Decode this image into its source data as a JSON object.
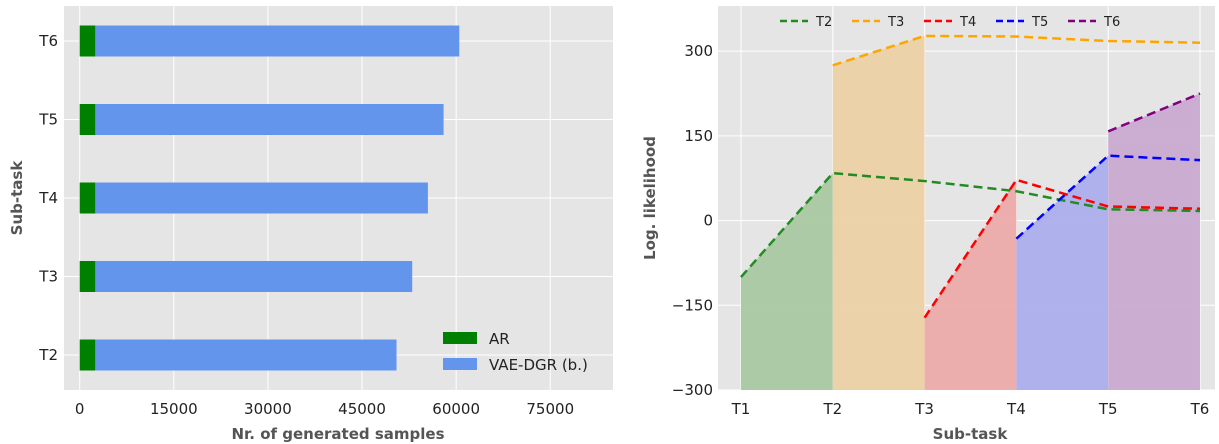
{
  "chart_data": [
    {
      "type": "bar",
      "orientation": "horizontal",
      "stacked": true,
      "categories": [
        "T2",
        "T3",
        "T4",
        "T5",
        "T6"
      ],
      "series": [
        {
          "name": "AR",
          "color": "#008000",
          "values": [
            2500,
            2500,
            2500,
            2500,
            2500
          ]
        },
        {
          "name": "VAE-DGR (b.)",
          "color": "#6495ED",
          "values": [
            48000,
            50500,
            53000,
            55500,
            58000
          ]
        }
      ],
      "xlabel": "Nr. of generated samples",
      "ylabel": "Sub-task",
      "xlim": [
        -2500,
        85000
      ],
      "xticks": [
        "0",
        "15000",
        "30000",
        "45000",
        "60000",
        "75000"
      ],
      "xtick_values": [
        0,
        15000,
        30000,
        45000,
        60000,
        75000
      ],
      "grid": true,
      "legend_position": "bottom-right",
      "background": "#e5e5e5"
    },
    {
      "type": "line",
      "x": [
        "T1",
        "T2",
        "T3",
        "T4",
        "T5",
        "T6"
      ],
      "series": [
        {
          "name": "T2",
          "color": "#228B22",
          "fill": "#a9c8a2",
          "dashed": true,
          "x": [
            "T1",
            "T2",
            "T3",
            "T4",
            "T5",
            "T6"
          ],
          "values": [
            -100,
            84,
            70,
            52,
            20,
            17
          ]
        },
        {
          "name": "T3",
          "color": "#FFA500",
          "fill": "#ebd1a5",
          "dashed": true,
          "x": [
            "T2",
            "T3",
            "T4",
            "T5",
            "T6"
          ],
          "values": [
            275,
            327,
            326,
            318,
            315
          ]
        },
        {
          "name": "T4",
          "color": "#FF0000",
          "fill": "#ecaaaa",
          "dashed": true,
          "x": [
            "T3",
            "T4",
            "T5",
            "T6"
          ],
          "values": [
            -172,
            72,
            25,
            21
          ]
        },
        {
          "name": "T5",
          "color": "#0000FF",
          "fill": "#abaeec",
          "dashed": true,
          "x": [
            "T4",
            "T5",
            "T6"
          ],
          "values": [
            -32,
            115,
            107
          ]
        },
        {
          "name": "T6",
          "color": "#800080",
          "fill": "#c9aad0",
          "dashed": true,
          "x": [
            "T5",
            "T6"
          ],
          "values": [
            158,
            225
          ]
        }
      ],
      "xlabel": "Sub-task",
      "ylabel": "Log. likelihood",
      "ylim": [
        -300,
        380
      ],
      "yticks": [
        "−300",
        "−150",
        "0",
        "150",
        "300"
      ],
      "ytick_values": [
        -300,
        -150,
        0,
        150,
        300
      ],
      "grid": true,
      "legend_position": "top",
      "background": "#e5e5e5"
    }
  ]
}
